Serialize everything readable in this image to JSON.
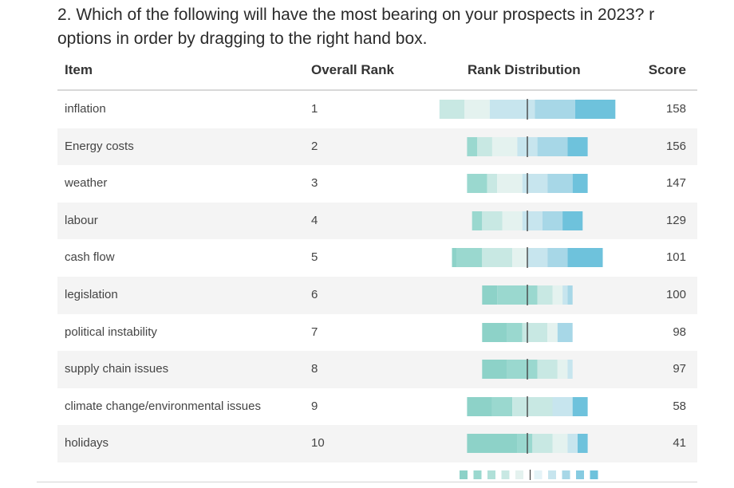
{
  "question": {
    "line1": "2. Which of the following will have the most bearing on your prospects in 2023? r",
    "line2": "options in order by dragging to the right hand box."
  },
  "table": {
    "headers": {
      "item": "Item",
      "overall_rank": "Overall Rank",
      "rank_distribution": "Rank Distribution",
      "score": "Score"
    }
  },
  "colors": {
    "rank_1": "#6ec2dc",
    "rank_2": "#86cbe1",
    "rank_3": "#a7d7e7",
    "rank_4": "#c7e5ee",
    "rank_5": "#e4f3f7",
    "rank_6": "#e4f2ef",
    "rank_7": "#c8e8e3",
    "rank_8": "#b0e0d8",
    "rank_9": "#9ad8cf",
    "rank_10": "#8dd2c8",
    "median_line": "#444444",
    "row_alt_bg": "#f4f4f4"
  },
  "chart_data": {
    "type": "bar",
    "stacked": true,
    "orientation": "horizontal",
    "categories": [
      "inflation",
      "Energy costs",
      "weather",
      "labour",
      "cash flow",
      "legislation",
      "political instability",
      "supply chain issues",
      "climate change/environmental issues",
      "holidays"
    ],
    "overall_rank": [
      1,
      2,
      3,
      4,
      5,
      6,
      7,
      8,
      9,
      10
    ],
    "score": [
      158,
      156,
      147,
      129,
      101,
      100,
      98,
      97,
      58,
      41
    ],
    "rank_order": [
      1,
      2,
      3,
      4,
      5,
      6,
      7,
      8,
      9,
      10
    ],
    "series": [
      {
        "values": [
          8,
          4,
          3,
          4,
          7,
          0,
          0,
          0,
          3,
          2
        ]
      },
      {
        "values": [
          8,
          6,
          5,
          4,
          4,
          1,
          3,
          0,
          0,
          0
        ]
      },
      {
        "values": [
          9,
          4,
          5,
          4,
          4,
          1,
          0,
          1,
          4,
          2
        ]
      },
      {
        "values": [
          5,
          5,
          5,
          4,
          3,
          2,
          2,
          2,
          0,
          3
        ]
      },
      {
        "values": [
          5,
          3,
          2,
          4,
          6,
          3,
          5,
          4,
          8,
          4
        ]
      },
      {
        "values": [
          0,
          2,
          4,
          2,
          5,
          8,
          3,
          6,
          4,
          3
        ]
      },
      {
        "values": [
          0,
          0,
          0,
          0,
          1,
          3,
          5,
          5,
          5,
          10
        ]
      }
    ]
  }
}
